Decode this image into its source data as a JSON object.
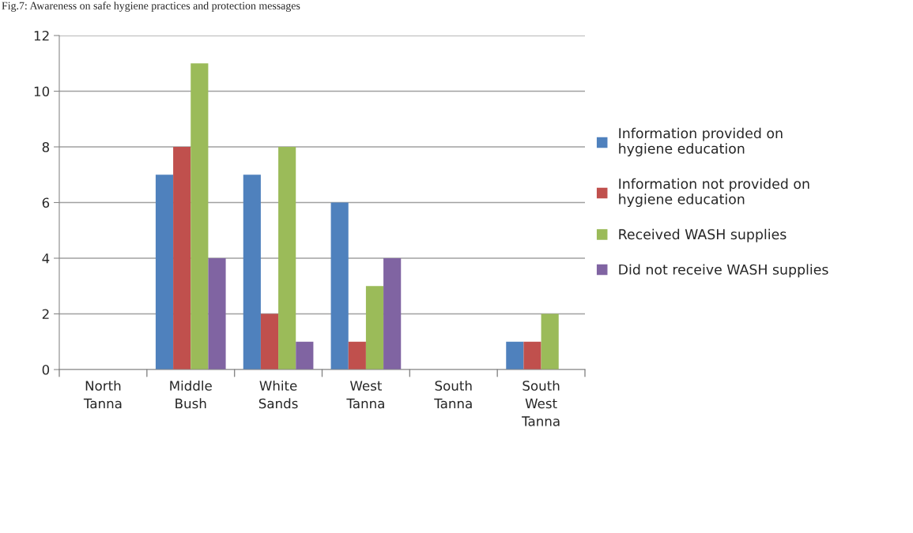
{
  "chart_data": {
    "type": "bar",
    "title": "Fig.7: Awareness on safe hygiene practices and protection messages",
    "categories": [
      "North Tanna",
      "Middle Bush",
      "White Sands",
      "West Tanna",
      "South Tanna",
      "South West Tanna"
    ],
    "series": [
      {
        "name": "Information provided on hygiene education",
        "color": "#4f81bd",
        "values": [
          0,
          7,
          7,
          6,
          0,
          1
        ]
      },
      {
        "name": "Information not provided on hygiene education",
        "color": "#c0504d",
        "values": [
          0,
          8,
          2,
          1,
          0,
          1
        ]
      },
      {
        "name": "Received WASH supplies",
        "color": "#9bbb59",
        "values": [
          0,
          11,
          8,
          3,
          0,
          2
        ]
      },
      {
        "name": "Did not receive WASH supplies",
        "color": "#8064a2",
        "values": [
          0,
          4,
          1,
          4,
          0,
          0
        ]
      }
    ],
    "ylim": [
      0,
      12
    ],
    "yticks": [
      0,
      2,
      4,
      6,
      8,
      10,
      12
    ],
    "grid": "y",
    "legend": "right"
  }
}
